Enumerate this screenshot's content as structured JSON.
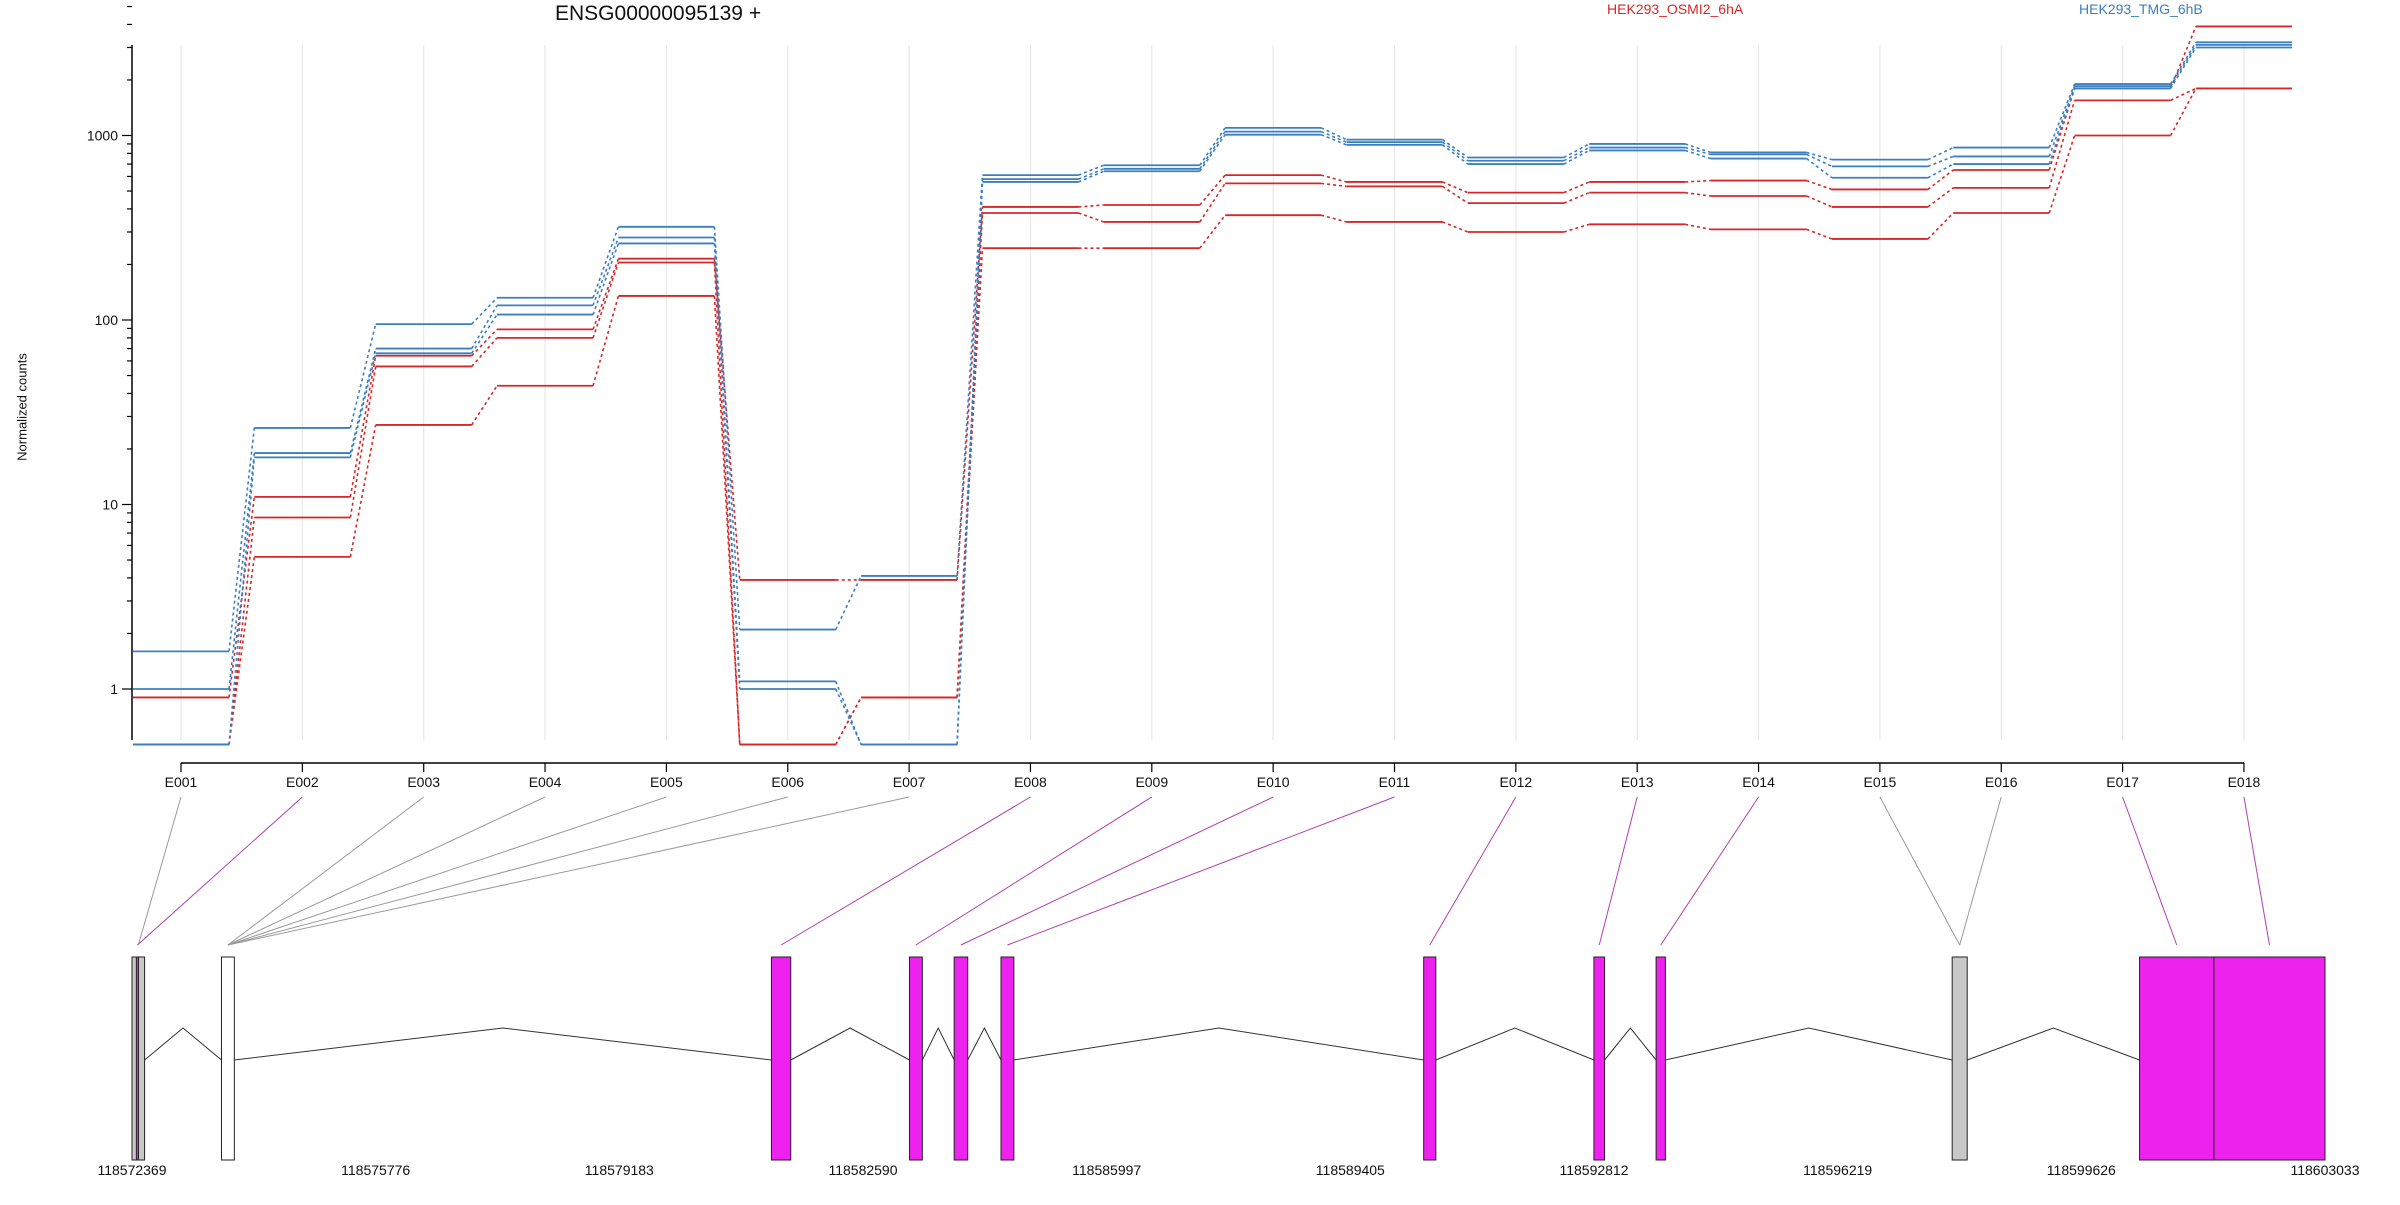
{
  "chart_data": {
    "type": "line",
    "title": "ENSG00000095139 +",
    "xlabel": "",
    "ylabel": "Normalized counts",
    "yscale": "log",
    "ylim": [
      0.5,
      5000
    ],
    "yticks": [
      1,
      10,
      100,
      1000
    ],
    "ytick_labels": [
      "1",
      "10",
      "100",
      "1000"
    ],
    "grid": "vertical, per exon",
    "legend_placement": "top-right",
    "categories": [
      "E001",
      "E002",
      "E003",
      "E004",
      "E005",
      "E006",
      "E007",
      "E008",
      "E009",
      "E010",
      "E011",
      "E012",
      "E013",
      "E014",
      "E015",
      "E016",
      "E017",
      "E018"
    ],
    "series": [
      {
        "name": "HEK293_OSMI2_6hA",
        "color": "#d62728",
        "values": [
          0.9,
          11,
          64,
          89,
          215,
          3.9,
          3.9,
          410,
          420,
          610,
          560,
          490,
          560,
          570,
          510,
          650,
          1800,
          3900
        ]
      },
      {
        "color": "#d62728",
        "values": [
          0.5,
          8.5,
          56,
          80,
          205,
          0.5,
          0.9,
          380,
          340,
          550,
          530,
          430,
          490,
          470,
          410,
          520,
          1550,
          1800
        ]
      },
      {
        "color": "#d62728",
        "values": [
          0.5,
          5.2,
          27,
          44,
          135,
          0.5,
          0.9,
          245,
          245,
          370,
          340,
          300,
          330,
          310,
          275,
          380,
          1000,
          1800
        ]
      },
      {
        "name": "HEK293_TMG_6hB",
        "color": "#3b7fc0",
        "values": [
          1.6,
          26,
          95,
          132,
          320,
          2.1,
          4.1,
          610,
          690,
          1100,
          950,
          760,
          900,
          810,
          740,
          860,
          1900,
          3200
        ]
      },
      {
        "color": "#3b7fc0",
        "values": [
          1.0,
          19,
          70,
          120,
          280,
          1.1,
          0.5,
          580,
          660,
          1050,
          920,
          730,
          860,
          790,
          680,
          770,
          1850,
          3100
        ]
      },
      {
        "color": "#3b7fc0",
        "values": [
          0.5,
          18,
          66,
          107,
          260,
          1.0,
          0.5,
          560,
          640,
          1010,
          890,
          700,
          830,
          750,
          590,
          700,
          1800,
          3000
        ]
      }
    ],
    "gene_model": {
      "coordinate_ticks": [
        "118572369",
        "118575776",
        "118579183",
        "118582590",
        "118585997",
        "118589405",
        "118592812",
        "118596219",
        "118599626",
        "118603033"
      ],
      "coord_range": [
        118572369,
        118603033
      ],
      "exons": [
        {
          "exon": "E001",
          "start": 118572369,
          "end": 118572545,
          "status": "not significant",
          "color": "#c8c8c8"
        },
        {
          "exon": "E002",
          "start": 118572430,
          "end": 118572460,
          "status": "significant",
          "color": "#ee22ee"
        },
        {
          "exon": "E003",
          "start": 118573620,
          "end": 118573800,
          "status": "not significant",
          "color": "#ffffff"
        },
        {
          "exon": "E004",
          "start": 118573620,
          "end": 118573800,
          "status": "not significant",
          "color": "#ffffff"
        },
        {
          "exon": "E005",
          "start": 118573620,
          "end": 118573800,
          "status": "not significant",
          "color": "#ffffff"
        },
        {
          "exon": "E006",
          "start": 118573620,
          "end": 118573800,
          "status": "not significant",
          "color": "#ffffff"
        },
        {
          "exon": "E007",
          "start": 118573620,
          "end": 118573800,
          "status": "not significant",
          "color": "#ffffff"
        },
        {
          "exon": "E008",
          "start": 118581310,
          "end": 118581580,
          "status": "significant",
          "color": "#ee22ee"
        },
        {
          "exon": "E009",
          "start": 118583240,
          "end": 118583420,
          "status": "significant",
          "color": "#ee22ee"
        },
        {
          "exon": "E010",
          "start": 118583865,
          "end": 118584055,
          "status": "significant",
          "color": "#ee22ee"
        },
        {
          "exon": "E011",
          "start": 118584520,
          "end": 118584700,
          "status": "significant",
          "color": "#ee22ee"
        },
        {
          "exon": "E012",
          "start": 118590430,
          "end": 118590600,
          "status": "significant",
          "color": "#ee22ee"
        },
        {
          "exon": "E013",
          "start": 118592810,
          "end": 118592960,
          "status": "significant",
          "color": "#ee22ee"
        },
        {
          "exon": "E014",
          "start": 118593680,
          "end": 118593810,
          "status": "significant",
          "color": "#ee22ee"
        },
        {
          "exon": "E015",
          "start": 118597820,
          "end": 118598030,
          "status": "not significant",
          "color": "#c8c8c8"
        },
        {
          "exon": "E016",
          "start": 118597820,
          "end": 118598030,
          "status": "not significant",
          "color": "#c8c8c8"
        },
        {
          "exon": "E017",
          "start": 118600440,
          "end": 118601480,
          "status": "significant",
          "color": "#ee22ee"
        },
        {
          "exon": "E018",
          "start": 118601480,
          "end": 118603033,
          "status": "significant",
          "color": "#ee22ee"
        }
      ],
      "blocks": [
        {
          "start": 118572369,
          "end": 118572545,
          "color": "#c8c8c8"
        },
        {
          "start": 118572430,
          "end": 118572460,
          "color": "#ee22ee"
        },
        {
          "start": 118573620,
          "end": 118573800,
          "color": "#ffffff"
        },
        {
          "start": 118581310,
          "end": 118581580,
          "color": "#ee22ee"
        },
        {
          "start": 118583240,
          "end": 118583420,
          "color": "#ee22ee"
        },
        {
          "start": 118583865,
          "end": 118584055,
          "color": "#ee22ee"
        },
        {
          "start": 118584520,
          "end": 118584700,
          "color": "#ee22ee"
        },
        {
          "start": 118590430,
          "end": 118590600,
          "color": "#ee22ee"
        },
        {
          "start": 118592810,
          "end": 118592960,
          "color": "#ee22ee"
        },
        {
          "start": 118593680,
          "end": 118593810,
          "color": "#ee22ee"
        },
        {
          "start": 118597820,
          "end": 118598030,
          "color": "#c8c8c8"
        },
        {
          "start": 118600440,
          "end": 118601480,
          "color": "#ee22ee"
        },
        {
          "start": 118601480,
          "end": 118603033,
          "color": "#ee22ee"
        }
      ]
    }
  },
  "colors": {
    "treated": "#d62728",
    "control": "#3b7fc0",
    "significant_exon": "#ee22ee",
    "non_significant_exon": "#c8c8c8",
    "significant_connector": "#b040b0",
    "non_significant_connector": "#999999"
  }
}
